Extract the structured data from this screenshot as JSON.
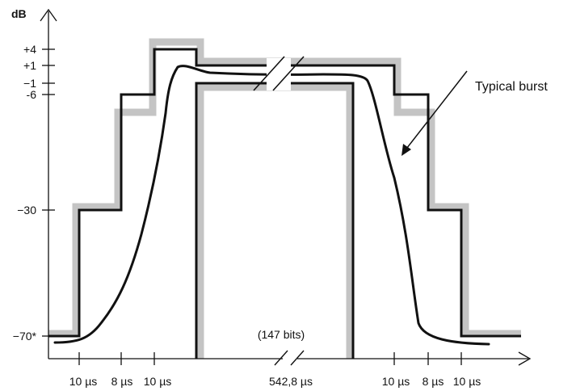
{
  "axes": {
    "y_unit": "dB",
    "y_tick_labels": [
      "+4",
      "+1",
      "−1",
      "-6",
      "−30",
      "−70*"
    ],
    "x_tick_labels": [
      "10 µs",
      "8 µs",
      "10 µs",
      "542,8 µs",
      "10 µs",
      "8 µs",
      "10 µs"
    ]
  },
  "annotations": {
    "bits": "(147 bits)",
    "burst_label": "Typical burst"
  },
  "colors": {
    "mask_gray": "#c4c4c4",
    "line": "#111111"
  }
}
